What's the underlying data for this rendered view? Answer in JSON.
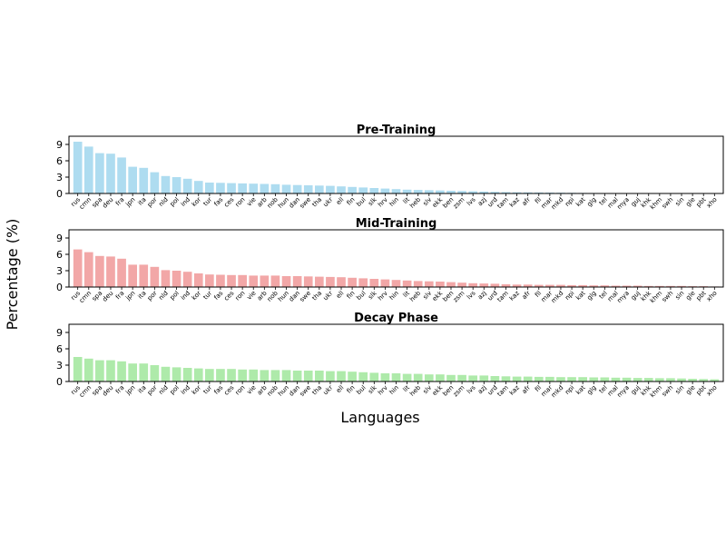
{
  "figure": {
    "ylabel": "Percentage (%)",
    "xlabel": "Languages"
  },
  "colors": {
    "pre_training": "#aedcf0",
    "mid_training": "#f2a7a7",
    "decay_phase": "#aeeaaa"
  },
  "chart_data": [
    {
      "type": "bar",
      "title": "Pre-Training",
      "categories": [
        "rus",
        "cmn",
        "spa",
        "deu",
        "fra",
        "jpn",
        "ita",
        "por",
        "nld",
        "pol",
        "ind",
        "kor",
        "tur",
        "fas",
        "ces",
        "ron",
        "vie",
        "arb",
        "nob",
        "hun",
        "dan",
        "swe",
        "tha",
        "ukr",
        "ell",
        "fin",
        "bul",
        "slk",
        "hrv",
        "hin",
        "lit",
        "heb",
        "slv",
        "ekk",
        "ben",
        "zsm",
        "lvs",
        "azj",
        "urd",
        "tam",
        "kaz",
        "afr",
        "fil",
        "mar",
        "mkd",
        "npi",
        "kat",
        "glg",
        "tel",
        "mal",
        "mya",
        "guj",
        "khk",
        "khm",
        "swh",
        "sin",
        "gle",
        "pbt",
        "xho"
      ],
      "values": [
        9.5,
        8.6,
        7.4,
        7.3,
        6.6,
        4.9,
        4.7,
        3.9,
        3.2,
        3.0,
        2.7,
        2.3,
        2.0,
        1.95,
        1.9,
        1.85,
        1.8,
        1.75,
        1.7,
        1.6,
        1.55,
        1.5,
        1.45,
        1.4,
        1.3,
        1.2,
        1.1,
        1.0,
        0.9,
        0.8,
        0.7,
        0.65,
        0.6,
        0.55,
        0.5,
        0.45,
        0.4,
        0.35,
        0.3,
        0.25,
        0.22,
        0.2,
        0.18,
        0.16,
        0.14,
        0.12,
        0.1,
        0.09,
        0.08,
        0.07,
        0.06,
        0.05,
        0.05,
        0.04,
        0.04,
        0.03,
        0.03,
        0.02,
        0.02
      ],
      "yticks": [
        0,
        3,
        6,
        9
      ],
      "ylim": [
        0,
        10.5
      ]
    },
    {
      "type": "bar",
      "title": "Mid-Training",
      "categories": [
        "rus",
        "cmn",
        "spa",
        "deu",
        "fra",
        "jpn",
        "ita",
        "por",
        "nld",
        "pol",
        "ind",
        "kor",
        "tur",
        "fas",
        "ces",
        "ron",
        "vie",
        "arb",
        "nob",
        "hun",
        "dan",
        "swe",
        "tha",
        "ukr",
        "ell",
        "fin",
        "bul",
        "slk",
        "hrv",
        "hin",
        "lit",
        "heb",
        "slv",
        "ekk",
        "ben",
        "zsm",
        "lvs",
        "azj",
        "urd",
        "tam",
        "kaz",
        "afr",
        "fil",
        "mar",
        "mkd",
        "npi",
        "kat",
        "glg",
        "tel",
        "mal",
        "mya",
        "guj",
        "khk",
        "khm",
        "swh",
        "sin",
        "gle",
        "pbt",
        "xho"
      ],
      "values": [
        6.9,
        6.4,
        5.7,
        5.6,
        5.2,
        4.1,
        4.1,
        3.7,
        3.1,
        3.0,
        2.8,
        2.5,
        2.3,
        2.25,
        2.2,
        2.2,
        2.1,
        2.1,
        2.1,
        2.0,
        2.0,
        1.95,
        1.9,
        1.85,
        1.8,
        1.7,
        1.6,
        1.5,
        1.4,
        1.3,
        1.2,
        1.1,
        1.05,
        1.0,
        0.9,
        0.8,
        0.7,
        0.65,
        0.6,
        0.5,
        0.45,
        0.45,
        0.4,
        0.4,
        0.4,
        0.35,
        0.35,
        0.3,
        0.3,
        0.25,
        0.25,
        0.25,
        0.2,
        0.2,
        0.2,
        0.2,
        0.15,
        0.15,
        0.1
      ],
      "yticks": [
        0,
        3,
        6,
        9
      ],
      "ylim": [
        0,
        10.5
      ]
    },
    {
      "type": "bar",
      "title": "Decay Phase",
      "categories": [
        "rus",
        "cmn",
        "spa",
        "deu",
        "fra",
        "jpn",
        "ita",
        "por",
        "nld",
        "pol",
        "ind",
        "kor",
        "tur",
        "fas",
        "ces",
        "ron",
        "vie",
        "arb",
        "nob",
        "hun",
        "dan",
        "swe",
        "tha",
        "ukr",
        "ell",
        "fin",
        "bul",
        "slk",
        "hrv",
        "hin",
        "lit",
        "heb",
        "slv",
        "ekk",
        "ben",
        "zsm",
        "lvs",
        "azj",
        "urd",
        "tam",
        "kaz",
        "afr",
        "fil",
        "mar",
        "mkd",
        "npi",
        "kat",
        "glg",
        "tel",
        "mal",
        "mya",
        "guj",
        "khk",
        "khm",
        "swh",
        "sin",
        "gle",
        "pbt",
        "xho"
      ],
      "values": [
        4.5,
        4.2,
        3.9,
        3.9,
        3.7,
        3.3,
        3.3,
        3.0,
        2.7,
        2.6,
        2.5,
        2.4,
        2.3,
        2.3,
        2.3,
        2.2,
        2.2,
        2.1,
        2.1,
        2.1,
        2.0,
        2.0,
        2.0,
        1.9,
        1.9,
        1.8,
        1.7,
        1.6,
        1.5,
        1.5,
        1.4,
        1.4,
        1.3,
        1.3,
        1.2,
        1.2,
        1.1,
        1.1,
        1.0,
        0.95,
        0.9,
        0.9,
        0.85,
        0.85,
        0.8,
        0.8,
        0.8,
        0.75,
        0.75,
        0.7,
        0.7,
        0.65,
        0.65,
        0.6,
        0.6,
        0.55,
        0.5,
        0.45,
        0.4
      ],
      "yticks": [
        0,
        3,
        6,
        9
      ],
      "ylim": [
        0,
        10.5
      ]
    }
  ]
}
